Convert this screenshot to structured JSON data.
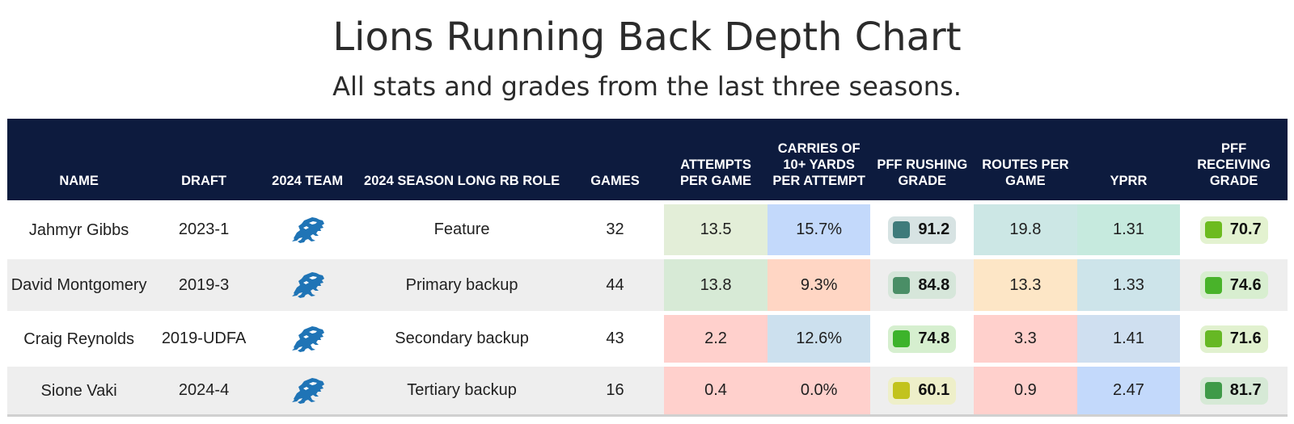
{
  "title": "Lions Running Back Depth Chart",
  "subtitle": "All stats and grades from the last three seasons.",
  "chart_data": {
    "type": "table",
    "columns": [
      "NAME",
      "DRAFT",
      "2024 TEAM",
      "2024 SEASON LONG RB ROLE",
      "GAMES",
      "ATTEMPTS PER GAME",
      "CARRIES OF 10+ YARDS PER ATTEMPT",
      "PFF RUSHING GRADE",
      "ROUTES PER GAME",
      "YPRR",
      "PFF RECEIVING GRADE"
    ],
    "team_logo_icon": "detroit-lions-logo-icon",
    "rows": [
      {
        "name": "Jahmyr Gibbs",
        "draft": "2023-1",
        "role": "Feature",
        "games": "32",
        "attempts": "13.5",
        "carries10": "15.7%",
        "rushing": "91.2",
        "routes": "19.8",
        "yprr": "1.31",
        "receiving": "70.7"
      },
      {
        "name": "David Montgomery",
        "draft": "2019-3",
        "role": "Primary backup",
        "games": "44",
        "attempts": "13.8",
        "carries10": "9.3%",
        "rushing": "84.8",
        "routes": "13.3",
        "yprr": "1.33",
        "receiving": "74.6"
      },
      {
        "name": "Craig Reynolds",
        "draft": "2019-UDFA",
        "role": "Secondary backup",
        "games": "43",
        "attempts": "2.2",
        "carries10": "12.6%",
        "rushing": "74.8",
        "routes": "3.3",
        "yprr": "1.41",
        "receiving": "71.6"
      },
      {
        "name": "Sione Vaki",
        "draft": "2024-4",
        "role": "Tertiary backup",
        "games": "16",
        "attempts": "0.4",
        "carries10": "0.0%",
        "rushing": "60.1",
        "routes": "0.9",
        "yprr": "2.47",
        "receiving": "81.7"
      }
    ],
    "cell_colors": {
      "attempts": [
        "#e3eed8",
        "#d7ead6",
        "#ffd0cc",
        "#ffd0cc"
      ],
      "carries10": [
        "#c3d9fb",
        "#ffd6c4",
        "#cce0ee",
        "#ffd0cc"
      ],
      "routes": [
        "#cce7e5",
        "#fde6c6",
        "#ffd0cc",
        "#ffd0cc"
      ],
      "yprr": [
        "#c6eade",
        "#cde4ea",
        "#cfdff0",
        "#c3d9fb"
      ]
    },
    "grade_colors": {
      "rushing": [
        {
          "square": "#3f7b7b",
          "pill": "#d7e3e3"
        },
        {
          "square": "#4a8e66",
          "pill": "#d6e6da"
        },
        {
          "square": "#3db32b",
          "pill": "#d6efcf"
        },
        {
          "square": "#c2c31d",
          "pill": "#eeefc9"
        }
      ],
      "receiving": [
        {
          "square": "#6dbb1f",
          "pill": "#e3f2d0"
        },
        {
          "square": "#49b32a",
          "pill": "#d8eed0"
        },
        {
          "square": "#66b824",
          "pill": "#e1f1cf"
        },
        {
          "square": "#3f9a48",
          "pill": "#d6e9d6"
        }
      ]
    },
    "colors": {
      "header_bg": "#0d1b3e",
      "header_text": "#ffffff",
      "row_alt": "#eeeeee",
      "lions_blue": "#1f74b6"
    }
  }
}
